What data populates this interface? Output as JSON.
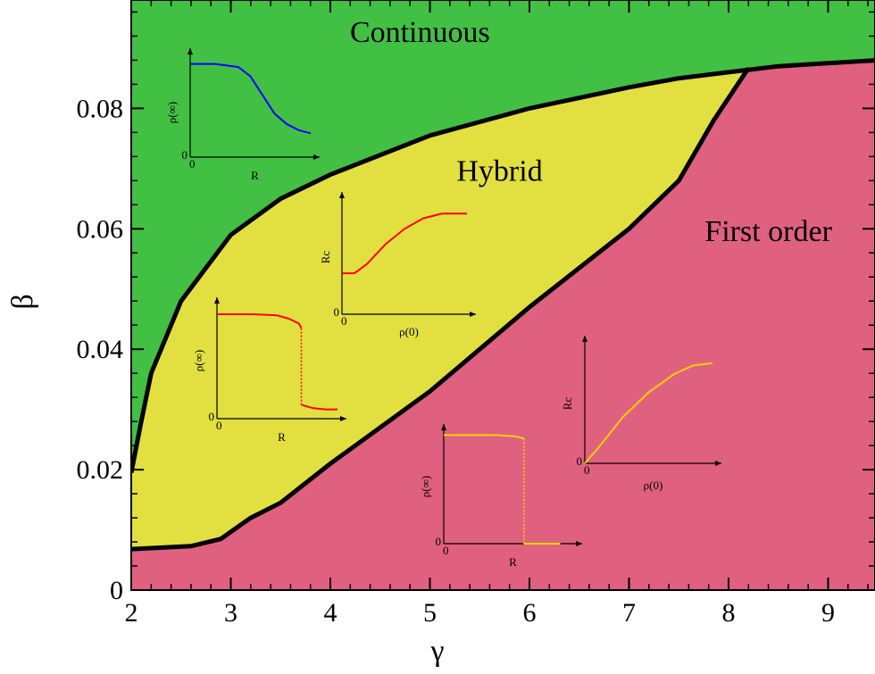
{
  "chart_data": {
    "type": "area",
    "xlabel": "γ",
    "ylabel": "β",
    "xlim": [
      2,
      9.5
    ],
    "ylim": [
      0,
      0.098
    ],
    "x_ticks": [
      {
        "value": 2,
        "label": "2"
      },
      {
        "value": 3,
        "label": "3"
      },
      {
        "value": 4,
        "label": "4"
      },
      {
        "value": 5,
        "label": "5"
      },
      {
        "value": 6,
        "label": "6"
      },
      {
        "value": 7,
        "label": "7"
      },
      {
        "value": 8,
        "label": "8"
      },
      {
        "value": 9,
        "label": "9"
      }
    ],
    "y_ticks": [
      {
        "value": 0,
        "label": "0"
      },
      {
        "value": 0.02,
        "label": "0.02"
      },
      {
        "value": 0.04,
        "label": "0.04"
      },
      {
        "value": 0.06,
        "label": "0.06"
      },
      {
        "value": 0.08,
        "label": "0.08"
      }
    ],
    "colors": {
      "continuous": "#41c044",
      "hybrid": "#e1e040",
      "first_order": "#e06080"
    },
    "regions": [
      {
        "name": "Continuous",
        "label": "Continuous",
        "label_at": [
          4.9,
          0.091
        ]
      },
      {
        "name": "Hybrid",
        "label": "Hybrid",
        "label_at": [
          5.7,
          0.068
        ]
      },
      {
        "name": "First order",
        "label": "First order",
        "label_at": [
          8.4,
          0.058
        ]
      }
    ],
    "upper_boundary": {
      "x": [
        2.0,
        2.1,
        2.2,
        2.5,
        3.0,
        3.5,
        4.0,
        5.0,
        6.0,
        7.0,
        7.5,
        8.0,
        8.5,
        9.0,
        9.5
      ],
      "y": [
        0.0195,
        0.028,
        0.036,
        0.048,
        0.059,
        0.065,
        0.069,
        0.0755,
        0.08,
        0.0835,
        0.085,
        0.086,
        0.087,
        0.0875,
        0.088
      ]
    },
    "lower_boundary": {
      "x": [
        2.0,
        2.6,
        2.9,
        3.2,
        3.5,
        4.0,
        5.0,
        6.0,
        7.0,
        7.5,
        7.85,
        8.2
      ],
      "y": [
        0.0068,
        0.0073,
        0.0085,
        0.012,
        0.0145,
        0.021,
        0.033,
        0.047,
        0.06,
        0.068,
        0.078,
        0.0867
      ]
    },
    "insets": [
      {
        "id": "continuous-rho-inf",
        "color": "#0000ff",
        "ylabel": "ρ(∞)",
        "xlabel": "R",
        "origin_y": "0",
        "origin_x": "0",
        "curve": {
          "x": [
            0,
            0.2,
            0.4,
            0.5,
            0.6,
            0.7,
            0.8,
            0.9,
            1.0
          ],
          "y": [
            0.9,
            0.9,
            0.87,
            0.78,
            0.6,
            0.42,
            0.32,
            0.26,
            0.23
          ]
        }
      },
      {
        "id": "hybrid-rc",
        "color": "#ff0000",
        "ylabel": "Rc",
        "xlabel": "ρ(0)",
        "origin_y": "0",
        "origin_x": "0",
        "curve": {
          "x": [
            0,
            0.1,
            0.2,
            0.35,
            0.5,
            0.65,
            0.8,
            1.0
          ],
          "y": [
            0.35,
            0.35,
            0.43,
            0.6,
            0.73,
            0.82,
            0.86,
            0.86
          ]
        }
      },
      {
        "id": "hybrid-rho-inf",
        "color": "#ff0000",
        "ylabel": "ρ(∞)",
        "xlabel": "R",
        "origin_y": "0",
        "origin_x": "0",
        "curve": {
          "x": [
            0,
            0.3,
            0.5,
            0.6,
            0.68,
            0.7
          ],
          "y": [
            0.9,
            0.9,
            0.89,
            0.86,
            0.82,
            0.78
          ]
        },
        "jump": {
          "x": 0.7,
          "y_from": 0.78,
          "y_to": 0.12
        },
        "tail": {
          "x": [
            0.7,
            0.8,
            0.9,
            1.0
          ],
          "y": [
            0.12,
            0.09,
            0.08,
            0.08
          ]
        }
      },
      {
        "id": "first-order-rho-inf",
        "color": "#ffd000",
        "ylabel": "ρ(∞)",
        "xlabel": "R",
        "origin_y": "0",
        "origin_x": "0",
        "curve": {
          "x": [
            0,
            0.4,
            0.55,
            0.62
          ],
          "y": [
            0.95,
            0.95,
            0.94,
            0.92
          ]
        },
        "jump": {
          "x": 0.62,
          "y_from": 0.92,
          "y_to": 0.0
        },
        "tail": {
          "x": [
            0.62,
            0.9
          ],
          "y": [
            0.0,
            0.0
          ]
        }
      },
      {
        "id": "first-order-rc",
        "color": "#ffd000",
        "ylabel": "Rc",
        "xlabel": "ρ(0)",
        "origin_y": "0",
        "origin_x": "0",
        "curve": {
          "x": [
            0,
            0.1,
            0.3,
            0.5,
            0.7,
            0.85,
            1.0
          ],
          "y": [
            0.0,
            0.12,
            0.38,
            0.58,
            0.73,
            0.8,
            0.82
          ]
        }
      }
    ]
  }
}
